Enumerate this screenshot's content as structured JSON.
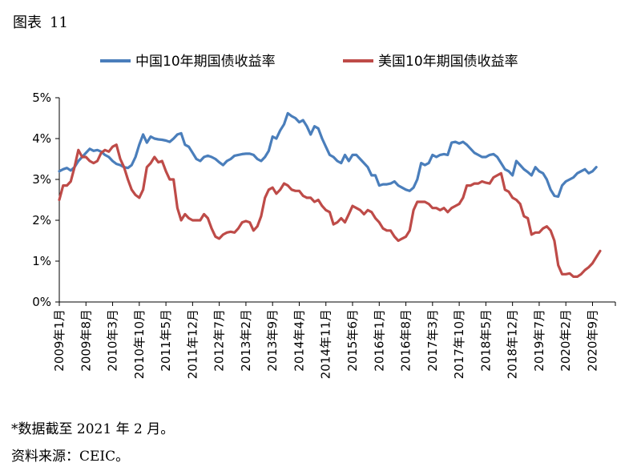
{
  "figure": {
    "label_prefix": "图表",
    "label_number": "11"
  },
  "footnote": "*数据截至 2021 年 2 月。",
  "source": "资料来源：CEIC。",
  "colors": {
    "china": "#4a7ebb",
    "us": "#be4b48",
    "axis": "#000000"
  },
  "chart_data": {
    "type": "line",
    "title": "",
    "xlabel": "",
    "ylabel": "",
    "ylim": [
      0,
      5
    ],
    "yticks": [
      "0%",
      "1%",
      "2%",
      "3%",
      "4%",
      "5%"
    ],
    "grid": false,
    "legend_position": "top-center",
    "x_tick_labels": [
      "2009年1月",
      "2009年8月",
      "2010年3月",
      "2010年10月",
      "2011年5月",
      "2011年12月",
      "2012年7月",
      "2013年2月",
      "2013年9月",
      "2014年4月",
      "2014年11月",
      "2015年6月",
      "2016年1月",
      "2016年8月",
      "2017年3月",
      "2017年10月",
      "2018年5月",
      "2018年12月",
      "2019年7月",
      "2020年2月",
      "2020年9月"
    ],
    "x_range_months": [
      0,
      146
    ],
    "series": [
      {
        "name": "中国10年期国债收益率",
        "color": "#4a7ebb",
        "points": [
          [
            0,
            3.2
          ],
          [
            1,
            3.25
          ],
          [
            2,
            3.28
          ],
          [
            3,
            3.22
          ],
          [
            4,
            3.3
          ],
          [
            5,
            3.45
          ],
          [
            6,
            3.55
          ],
          [
            7,
            3.65
          ],
          [
            8,
            3.75
          ],
          [
            9,
            3.7
          ],
          [
            10,
            3.72
          ],
          [
            11,
            3.68
          ],
          [
            12,
            3.6
          ],
          [
            13,
            3.55
          ],
          [
            14,
            3.45
          ],
          [
            15,
            3.38
          ],
          [
            16,
            3.35
          ],
          [
            17,
            3.3
          ],
          [
            18,
            3.28
          ],
          [
            19,
            3.35
          ],
          [
            20,
            3.55
          ],
          [
            21,
            3.85
          ],
          [
            22,
            4.1
          ],
          [
            23,
            3.9
          ],
          [
            24,
            4.05
          ],
          [
            25,
            4.0
          ],
          [
            26,
            3.98
          ],
          [
            27,
            3.97
          ],
          [
            28,
            3.95
          ],
          [
            29,
            3.92
          ],
          [
            30,
            4.0
          ],
          [
            31,
            4.1
          ],
          [
            32,
            4.13
          ],
          [
            33,
            3.85
          ],
          [
            34,
            3.8
          ],
          [
            35,
            3.65
          ],
          [
            36,
            3.5
          ],
          [
            37,
            3.45
          ],
          [
            38,
            3.55
          ],
          [
            39,
            3.58
          ],
          [
            40,
            3.55
          ],
          [
            41,
            3.5
          ],
          [
            42,
            3.42
          ],
          [
            43,
            3.35
          ],
          [
            44,
            3.45
          ],
          [
            45,
            3.5
          ],
          [
            46,
            3.58
          ],
          [
            47,
            3.6
          ],
          [
            48,
            3.62
          ],
          [
            49,
            3.63
          ],
          [
            50,
            3.63
          ],
          [
            51,
            3.6
          ],
          [
            52,
            3.5
          ],
          [
            53,
            3.45
          ],
          [
            54,
            3.55
          ],
          [
            55,
            3.7
          ],
          [
            56,
            4.05
          ],
          [
            57,
            4.0
          ],
          [
            58,
            4.2
          ],
          [
            59,
            4.35
          ],
          [
            60,
            4.62
          ],
          [
            61,
            4.55
          ],
          [
            62,
            4.5
          ],
          [
            63,
            4.4
          ],
          [
            64,
            4.45
          ],
          [
            65,
            4.3
          ],
          [
            66,
            4.1
          ],
          [
            67,
            4.3
          ],
          [
            68,
            4.25
          ],
          [
            69,
            4.0
          ],
          [
            70,
            3.8
          ],
          [
            71,
            3.6
          ],
          [
            72,
            3.55
          ],
          [
            73,
            3.45
          ],
          [
            74,
            3.4
          ],
          [
            75,
            3.6
          ],
          [
            76,
            3.45
          ],
          [
            77,
            3.6
          ],
          [
            78,
            3.6
          ],
          [
            79,
            3.5
          ],
          [
            80,
            3.4
          ],
          [
            81,
            3.3
          ],
          [
            82,
            3.1
          ],
          [
            83,
            3.1
          ],
          [
            84,
            2.85
          ],
          [
            85,
            2.88
          ],
          [
            86,
            2.88
          ],
          [
            87,
            2.9
          ],
          [
            88,
            2.95
          ],
          [
            89,
            2.85
          ],
          [
            90,
            2.8
          ],
          [
            91,
            2.75
          ],
          [
            92,
            2.72
          ],
          [
            93,
            2.8
          ],
          [
            94,
            3.0
          ],
          [
            95,
            3.4
          ],
          [
            96,
            3.35
          ],
          [
            97,
            3.4
          ],
          [
            98,
            3.6
          ],
          [
            99,
            3.55
          ],
          [
            100,
            3.6
          ],
          [
            101,
            3.62
          ],
          [
            102,
            3.6
          ],
          [
            103,
            3.9
          ],
          [
            104,
            3.92
          ],
          [
            105,
            3.88
          ],
          [
            106,
            3.92
          ],
          [
            107,
            3.85
          ],
          [
            108,
            3.75
          ],
          [
            109,
            3.65
          ],
          [
            110,
            3.6
          ],
          [
            111,
            3.55
          ],
          [
            112,
            3.55
          ],
          [
            113,
            3.6
          ],
          [
            114,
            3.62
          ],
          [
            115,
            3.55
          ],
          [
            116,
            3.4
          ],
          [
            117,
            3.25
          ],
          [
            118,
            3.2
          ],
          [
            119,
            3.1
          ],
          [
            120,
            3.45
          ],
          [
            121,
            3.35
          ],
          [
            122,
            3.25
          ],
          [
            123,
            3.18
          ],
          [
            124,
            3.1
          ],
          [
            125,
            3.3
          ],
          [
            126,
            3.2
          ],
          [
            127,
            3.15
          ],
          [
            128,
            3.0
          ],
          [
            129,
            2.75
          ],
          [
            130,
            2.6
          ],
          [
            131,
            2.58
          ],
          [
            132,
            2.85
          ],
          [
            133,
            2.95
          ],
          [
            134,
            3.0
          ],
          [
            135,
            3.05
          ],
          [
            136,
            3.15
          ],
          [
            137,
            3.2
          ],
          [
            138,
            3.25
          ],
          [
            139,
            3.15
          ],
          [
            140,
            3.2
          ],
          [
            141,
            3.3
          ]
        ]
      },
      {
        "name": "美国10年期国债收益率",
        "color": "#be4b48",
        "points": [
          [
            0,
            2.5
          ],
          [
            1,
            2.85
          ],
          [
            2,
            2.85
          ],
          [
            3,
            2.95
          ],
          [
            4,
            3.3
          ],
          [
            5,
            3.72
          ],
          [
            6,
            3.55
          ],
          [
            7,
            3.55
          ],
          [
            8,
            3.45
          ],
          [
            9,
            3.4
          ],
          [
            10,
            3.45
          ],
          [
            11,
            3.65
          ],
          [
            12,
            3.72
          ],
          [
            13,
            3.68
          ],
          [
            14,
            3.8
          ],
          [
            15,
            3.85
          ],
          [
            16,
            3.5
          ],
          [
            17,
            3.3
          ],
          [
            18,
            3.0
          ],
          [
            19,
            2.75
          ],
          [
            20,
            2.62
          ],
          [
            21,
            2.55
          ],
          [
            22,
            2.75
          ],
          [
            23,
            3.3
          ],
          [
            24,
            3.4
          ],
          [
            25,
            3.55
          ],
          [
            26,
            3.42
          ],
          [
            27,
            3.45
          ],
          [
            28,
            3.2
          ],
          [
            29,
            3.0
          ],
          [
            30,
            3.0
          ],
          [
            31,
            2.3
          ],
          [
            32,
            2.0
          ],
          [
            33,
            2.15
          ],
          [
            34,
            2.05
          ],
          [
            35,
            2.0
          ],
          [
            36,
            2.0
          ],
          [
            37,
            2.0
          ],
          [
            38,
            2.15
          ],
          [
            39,
            2.05
          ],
          [
            40,
            1.8
          ],
          [
            41,
            1.6
          ],
          [
            42,
            1.55
          ],
          [
            43,
            1.65
          ],
          [
            44,
            1.7
          ],
          [
            45,
            1.72
          ],
          [
            46,
            1.7
          ],
          [
            47,
            1.8
          ],
          [
            48,
            1.95
          ],
          [
            49,
            1.98
          ],
          [
            50,
            1.95
          ],
          [
            51,
            1.75
          ],
          [
            52,
            1.85
          ],
          [
            53,
            2.1
          ],
          [
            54,
            2.55
          ],
          [
            55,
            2.75
          ],
          [
            56,
            2.8
          ],
          [
            57,
            2.65
          ],
          [
            58,
            2.75
          ],
          [
            59,
            2.9
          ],
          [
            60,
            2.85
          ],
          [
            61,
            2.75
          ],
          [
            62,
            2.72
          ],
          [
            63,
            2.72
          ],
          [
            64,
            2.6
          ],
          [
            65,
            2.55
          ],
          [
            66,
            2.55
          ],
          [
            67,
            2.45
          ],
          [
            68,
            2.5
          ],
          [
            69,
            2.35
          ],
          [
            70,
            2.25
          ],
          [
            71,
            2.2
          ],
          [
            72,
            1.9
          ],
          [
            73,
            1.95
          ],
          [
            74,
            2.05
          ],
          [
            75,
            1.95
          ],
          [
            76,
            2.15
          ],
          [
            77,
            2.35
          ],
          [
            78,
            2.3
          ],
          [
            79,
            2.25
          ],
          [
            80,
            2.15
          ],
          [
            81,
            2.25
          ],
          [
            82,
            2.2
          ],
          [
            83,
            2.05
          ],
          [
            84,
            1.95
          ],
          [
            85,
            1.8
          ],
          [
            86,
            1.75
          ],
          [
            87,
            1.75
          ],
          [
            88,
            1.6
          ],
          [
            89,
            1.5
          ],
          [
            90,
            1.55
          ],
          [
            91,
            1.6
          ],
          [
            92,
            1.75
          ],
          [
            93,
            2.25
          ],
          [
            94,
            2.45
          ],
          [
            95,
            2.45
          ],
          [
            96,
            2.45
          ],
          [
            97,
            2.4
          ],
          [
            98,
            2.3
          ],
          [
            99,
            2.3
          ],
          [
            100,
            2.25
          ],
          [
            101,
            2.3
          ],
          [
            102,
            2.2
          ],
          [
            103,
            2.3
          ],
          [
            104,
            2.35
          ],
          [
            105,
            2.4
          ],
          [
            106,
            2.55
          ],
          [
            107,
            2.85
          ],
          [
            108,
            2.85
          ],
          [
            109,
            2.9
          ],
          [
            110,
            2.9
          ],
          [
            111,
            2.95
          ],
          [
            112,
            2.92
          ],
          [
            113,
            2.9
          ],
          [
            114,
            3.05
          ],
          [
            115,
            3.1
          ],
          [
            116,
            3.15
          ],
          [
            117,
            2.75
          ],
          [
            118,
            2.7
          ],
          [
            119,
            2.55
          ],
          [
            120,
            2.5
          ],
          [
            121,
            2.4
          ],
          [
            122,
            2.1
          ],
          [
            123,
            2.05
          ],
          [
            124,
            1.65
          ],
          [
            125,
            1.7
          ],
          [
            126,
            1.7
          ],
          [
            127,
            1.8
          ],
          [
            128,
            1.85
          ],
          [
            129,
            1.75
          ],
          [
            130,
            1.5
          ],
          [
            131,
            0.9
          ],
          [
            132,
            0.68
          ],
          [
            133,
            0.68
          ],
          [
            134,
            0.7
          ],
          [
            135,
            0.62
          ],
          [
            136,
            0.62
          ],
          [
            137,
            0.68
          ],
          [
            138,
            0.78
          ],
          [
            139,
            0.85
          ],
          [
            140,
            0.95
          ],
          [
            141,
            1.1
          ],
          [
            142,
            1.25
          ]
        ]
      }
    ]
  }
}
